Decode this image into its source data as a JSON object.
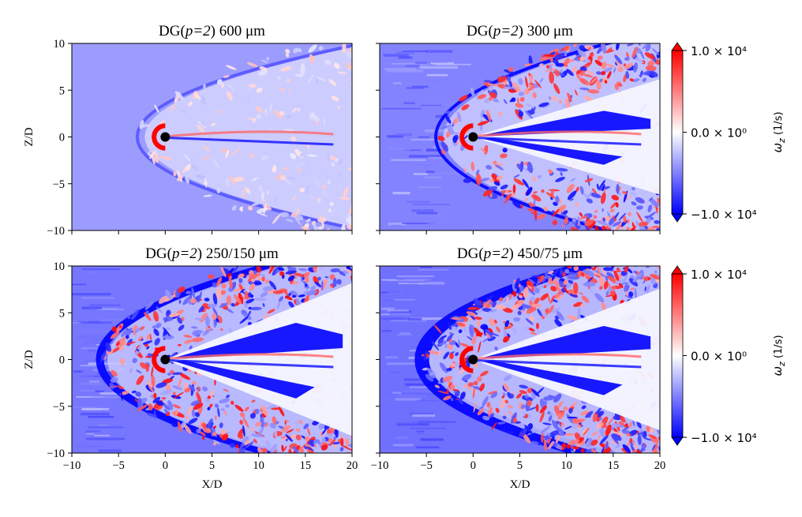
{
  "chart_data": {
    "type": "heatmap",
    "colormap": "bwr",
    "colorbar": {
      "label_symbol": "ω",
      "label_sub": "z",
      "label_units": "(1/s)",
      "ticks": [
        "1.0 × 10⁴",
        "0.0 × 10⁰",
        "−1.0 × 10⁴"
      ],
      "range": [
        -10000,
        10000
      ]
    },
    "xlabel": "X/D",
    "ylabel": "Z/D",
    "xlim": [
      -10,
      20
    ],
    "ylim": [
      -10,
      10
    ],
    "x_ticks": [
      "−10",
      "−5",
      "0",
      "5",
      "10",
      "15",
      "20"
    ],
    "y_ticks": [
      "10",
      "5",
      "0",
      "−5",
      "−10"
    ],
    "panels": [
      {
        "title_pre": "DG(",
        "title_it": "p=2",
        "title_post": ") 600 μm",
        "turbulence": 0.15,
        "wedge_angle": 0.05,
        "shock_x": -3.0
      },
      {
        "title_pre": "DG(",
        "title_it": "p=2",
        "title_post": ") 300 μm",
        "turbulence": 0.55,
        "wedge_angle": 0.25,
        "shock_x": -4.0
      },
      {
        "title_pre": "DG(",
        "title_it": "p=2",
        "title_post": ") 250/150 μm",
        "turbulence": 0.75,
        "wedge_angle": 0.35,
        "shock_x": -7.0
      },
      {
        "title_pre": "DG(",
        "title_it": "p=2",
        "title_post": ") 450/75 μm",
        "turbulence": 0.85,
        "wedge_angle": 0.32,
        "shock_x": -5.5
      }
    ],
    "grid": false,
    "legend": "none"
  }
}
